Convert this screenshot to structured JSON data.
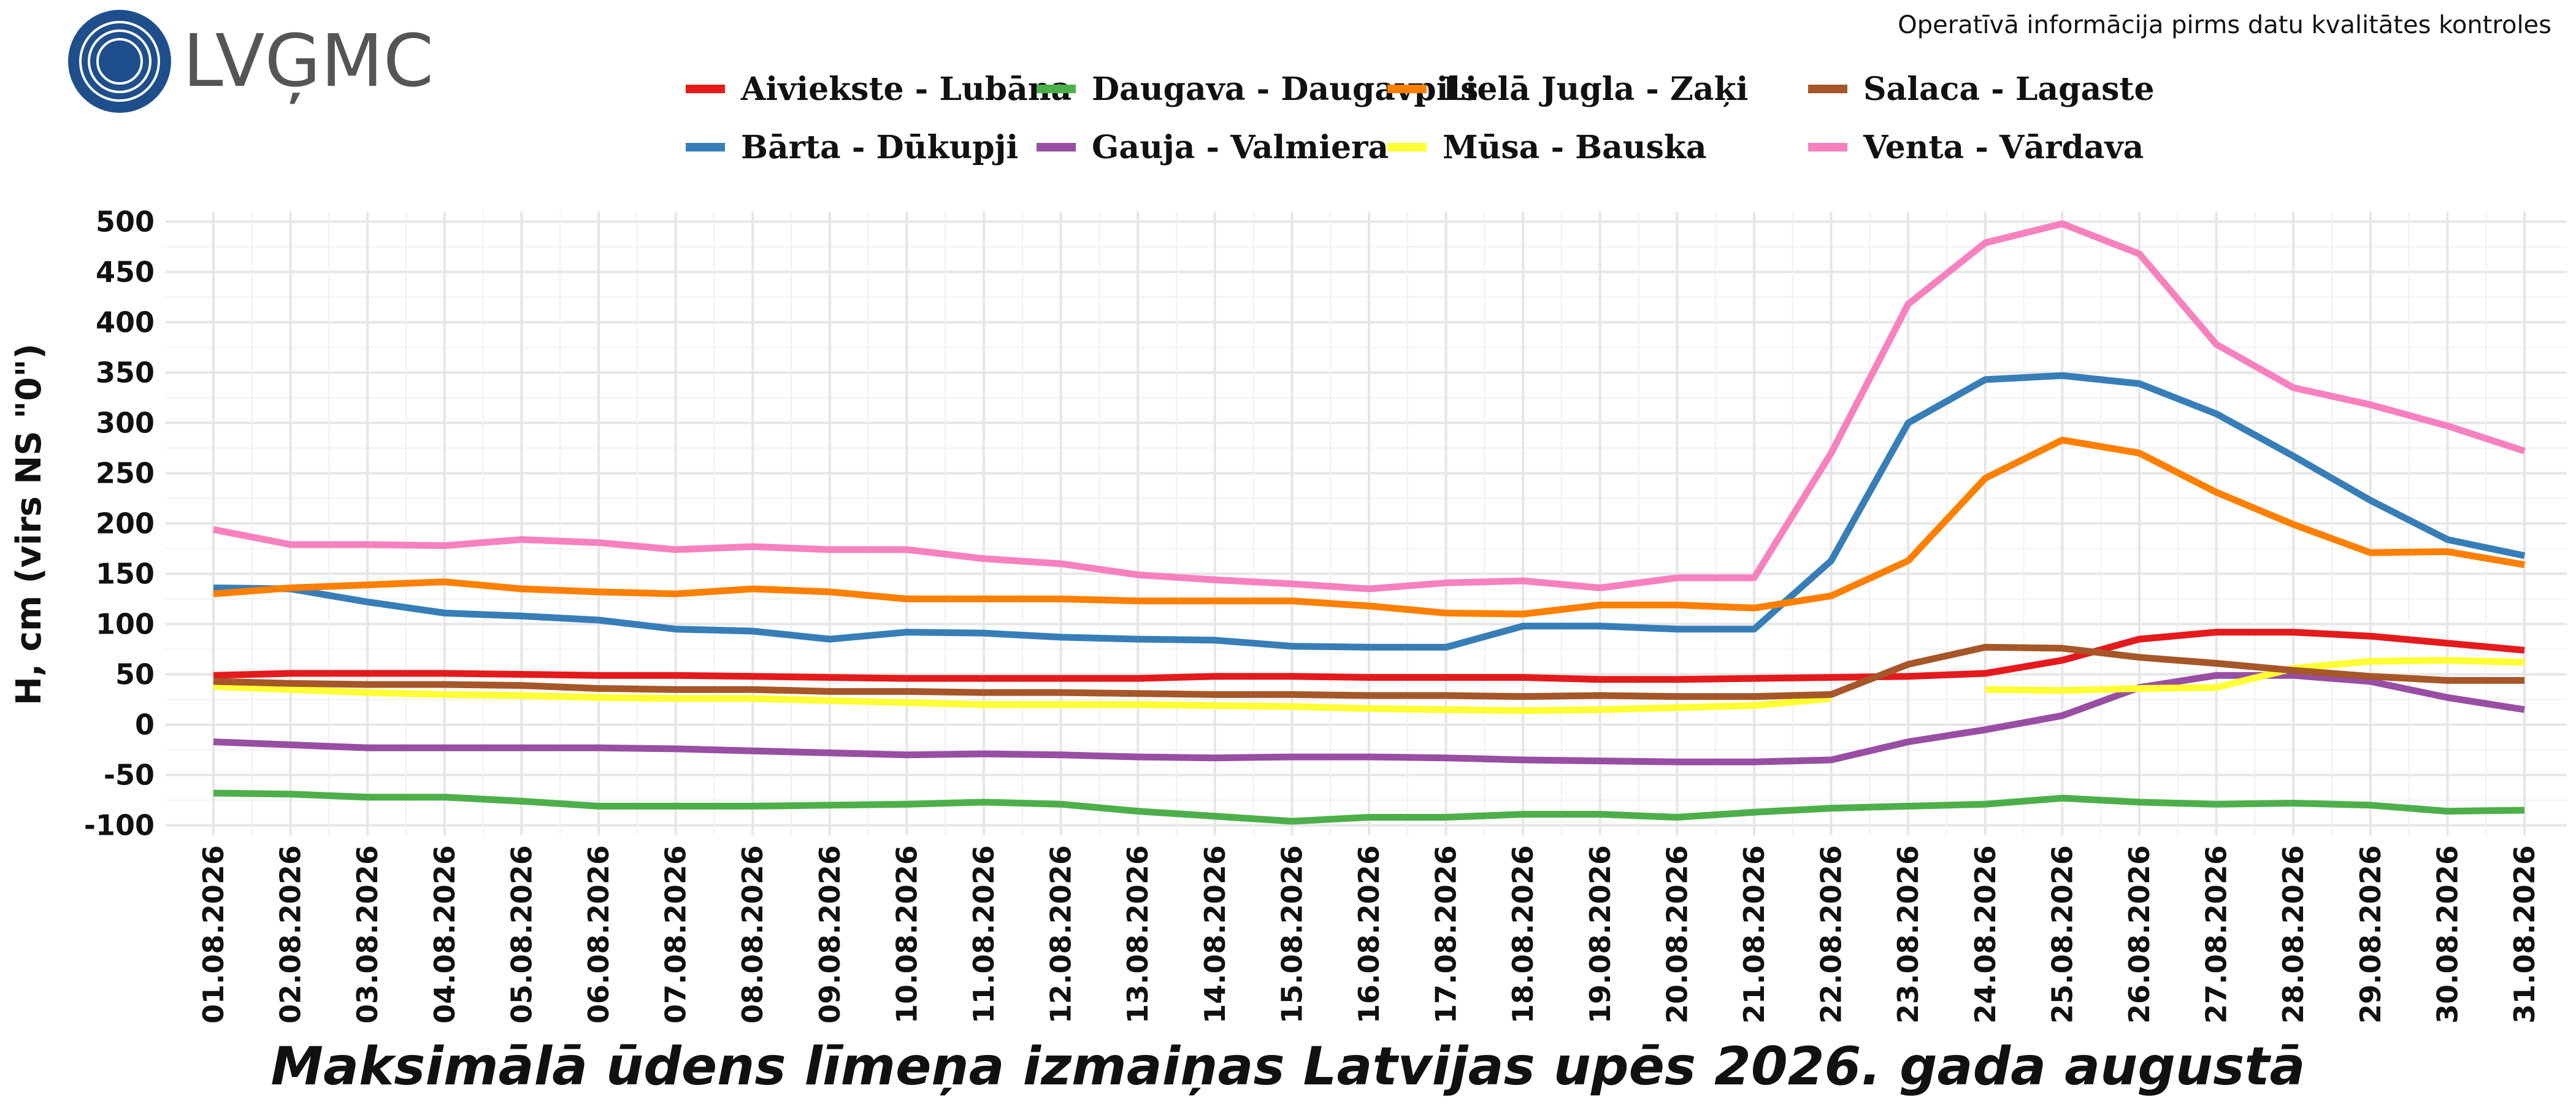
{
  "logo": {
    "text": "LVĢMC"
  },
  "top_note": "Operatīvā informācija pirms datu kvalitātes kontroles",
  "chart_data": {
    "type": "line",
    "title": "Maksimālā ūdens līmeņa izmaiņas Latvijas upēs 2026. gada augustā",
    "xlabel": "",
    "ylabel": "H, cm (virs NS \"0\")",
    "ylim": [
      -110,
      510
    ],
    "yticks": [
      -100,
      -50,
      0,
      50,
      100,
      150,
      200,
      250,
      300,
      350,
      400,
      450,
      500
    ],
    "grid": true,
    "legend_position": "top",
    "x": [
      "01.08.2026",
      "02.08.2026",
      "03.08.2026",
      "04.08.2026",
      "05.08.2026",
      "06.08.2026",
      "07.08.2026",
      "08.08.2026",
      "09.08.2026",
      "10.08.2026",
      "11.08.2026",
      "12.08.2026",
      "13.08.2026",
      "14.08.2026",
      "15.08.2026",
      "16.08.2026",
      "17.08.2026",
      "18.08.2026",
      "19.08.2026",
      "20.08.2026",
      "21.08.2026",
      "22.08.2026",
      "23.08.2026",
      "24.08.2026",
      "25.08.2026",
      "26.08.2026",
      "27.08.2026",
      "28.08.2026",
      "29.08.2026",
      "30.08.2026",
      "31.08.2026"
    ],
    "series": [
      {
        "name": "Aiviekste - Lubāna",
        "color": "#e41a1c",
        "values": [
          49,
          51,
          51,
          51,
          50,
          49,
          49,
          48,
          47,
          46,
          46,
          46,
          46,
          48,
          48,
          47,
          47,
          47,
          45,
          45,
          46,
          47,
          48,
          51,
          64,
          85,
          92,
          92,
          88,
          81,
          74
        ]
      },
      {
        "name": "Bārta - Dūkupji",
        "color": "#377eb8",
        "values": [
          136,
          135,
          122,
          111,
          108,
          104,
          95,
          93,
          85,
          92,
          91,
          87,
          85,
          84,
          78,
          77,
          77,
          98,
          98,
          95,
          95,
          163,
          300,
          343,
          347,
          339,
          309,
          267,
          223,
          184,
          168
        ]
      },
      {
        "name": "Daugava - Daugavpils",
        "color": "#4daf4a",
        "values": [
          -68,
          -69,
          -72,
          -72,
          -76,
          -81,
          -81,
          -81,
          -80,
          -79,
          -77,
          -79,
          -86,
          -91,
          -96,
          -92,
          -92,
          -89,
          -89,
          -92,
          -87,
          -83,
          -81,
          -79,
          -73,
          -77,
          -79,
          -78,
          -80,
          -86,
          -85
        ]
      },
      {
        "name": "Gauja - Valmiera",
        "color": "#984ea3",
        "values": [
          -17,
          -20,
          -23,
          -23,
          -23,
          -23,
          -24,
          -26,
          -28,
          -30,
          -29,
          -30,
          -32,
          -33,
          -32,
          -32,
          -33,
          -35,
          -36,
          -37,
          -37,
          -35,
          -17,
          -5,
          9,
          37,
          49,
          49,
          43,
          27,
          15
        ]
      },
      {
        "name": "Lielā Jugla - Zaķi",
        "color": "#ff7f00",
        "values": [
          130,
          136,
          139,
          142,
          135,
          132,
          130,
          135,
          132,
          125,
          125,
          125,
          123,
          123,
          123,
          118,
          111,
          110,
          119,
          119,
          116,
          128,
          163,
          245,
          283,
          270,
          231,
          199,
          171,
          172,
          159
        ]
      },
      {
        "name": "Mūsa - Bauska",
        "color": "#ffff33",
        "values": [
          38,
          35,
          32,
          30,
          29,
          27,
          26,
          26,
          24,
          22,
          20,
          20,
          20,
          19,
          18,
          16,
          15,
          14,
          15,
          17,
          19,
          26,
          null,
          35,
          34,
          36,
          37,
          56,
          63,
          64,
          62
        ]
      },
      {
        "name": "Salaca - Lagaste",
        "color": "#a65628",
        "values": [
          43,
          41,
          40,
          40,
          39,
          36,
          35,
          35,
          33,
          33,
          32,
          32,
          31,
          30,
          30,
          29,
          29,
          28,
          29,
          28,
          28,
          30,
          60,
          77,
          76,
          67,
          61,
          54,
          48,
          44,
          44
        ]
      },
      {
        "name": "Venta - Vārdava",
        "color": "#f781bf",
        "values": [
          194,
          179,
          179,
          178,
          184,
          181,
          174,
          177,
          174,
          174,
          165,
          160,
          149,
          144,
          140,
          135,
          141,
          143,
          136,
          146,
          146,
          270,
          418,
          479,
          498,
          468,
          378,
          335,
          318,
          297,
          272
        ]
      }
    ]
  }
}
